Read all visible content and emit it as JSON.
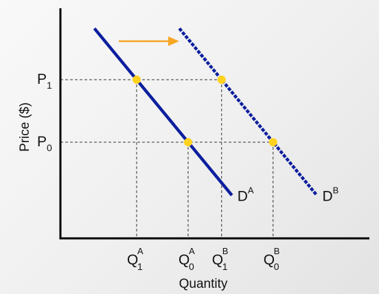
{
  "chart_data": {
    "type": "line",
    "xlabel": "Quantity",
    "ylabel": "Price ($)",
    "price_levels": [
      {
        "name": "P1",
        "base": "P",
        "sub": "1",
        "price": 1
      },
      {
        "name": "P0",
        "base": "P",
        "sub": "0",
        "price": 0
      }
    ],
    "quantity_ticks": [
      {
        "name": "Q1A",
        "base": "Q",
        "sub": "1",
        "sup": "A",
        "q": 1.0
      },
      {
        "name": "Q0A",
        "base": "Q",
        "sub": "0",
        "sup": "A",
        "q": 2.0
      },
      {
        "name": "Q1B",
        "base": "Q",
        "sub": "1",
        "sup": "B",
        "q": 2.65
      },
      {
        "name": "Q0B",
        "base": "Q",
        "sub": "0",
        "sup": "B",
        "q": 3.65
      }
    ],
    "series": [
      {
        "name": "DA",
        "base": "D",
        "sup": "A",
        "style": "solid",
        "color": "#0d1f9e",
        "points": [
          {
            "q": 1.0,
            "p": 1
          },
          {
            "q": 2.0,
            "p": 0
          }
        ]
      },
      {
        "name": "DB",
        "base": "D",
        "sup": "B",
        "style": "dashed",
        "color": "#0d1f9e",
        "points": [
          {
            "q": 2.65,
            "p": 1
          },
          {
            "q": 3.65,
            "p": 0
          }
        ]
      }
    ],
    "equilibrium_points": [
      {
        "q": 1.0,
        "p": 1
      },
      {
        "q": 2.0,
        "p": 0
      },
      {
        "q": 2.65,
        "p": 1
      },
      {
        "q": 3.65,
        "p": 0
      }
    ],
    "shift_arrow": {
      "direction": "right",
      "color": "#f5a623"
    },
    "colors": {
      "curve": "#0d1f9e",
      "point": "#ffd21f",
      "axis": "#000000",
      "guide": "#333333"
    }
  }
}
